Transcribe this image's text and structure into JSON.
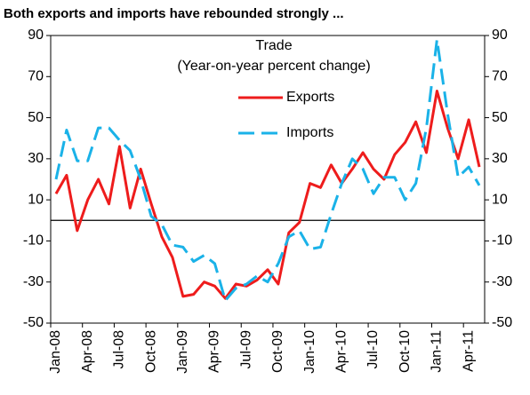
{
  "chart_data": {
    "type": "line",
    "title": "Both exports and imports have rebounded strongly ...",
    "annotations": [
      "Trade",
      "(Year-on-year percent change)"
    ],
    "categories": [
      "Jan-08",
      null,
      null,
      "Apr-08",
      null,
      null,
      "Jul-08",
      null,
      null,
      "Oct-08",
      null,
      null,
      "Jan-09",
      null,
      null,
      "Apr-09",
      null,
      null,
      "Jul-09",
      null,
      null,
      "Oct-09",
      null,
      null,
      "Jan-10",
      null,
      null,
      "Apr-10",
      null,
      null,
      "Jul-10",
      null,
      null,
      "Oct-10",
      null,
      null,
      "Jan-11",
      null,
      null,
      "Apr-11",
      null
    ],
    "series": [
      {
        "name": "Exports",
        "color": "#ee1c1c",
        "dash": false,
        "values": [
          13,
          22,
          -5,
          10,
          20,
          8,
          36,
          6,
          25,
          8,
          -8,
          -18,
          -37,
          -36,
          -30,
          -32,
          -38,
          -31,
          -32,
          -29,
          -24,
          -31,
          -6,
          -1,
          18,
          16,
          27,
          18,
          25,
          33,
          25,
          20,
          32,
          38,
          48,
          33,
          63,
          45,
          30,
          49,
          26
        ]
      },
      {
        "name": "Imports",
        "color": "#1ab2e8",
        "dash": true,
        "values": [
          20,
          44,
          29,
          29,
          45,
          45,
          39,
          34,
          20,
          2,
          -2,
          -12,
          -13,
          -20,
          -17,
          -21,
          -39,
          -33,
          -31,
          -27,
          -30,
          -21,
          -8,
          -5,
          -14,
          -13,
          3,
          18,
          30,
          25,
          13,
          21,
          21,
          10,
          18,
          45,
          88,
          52,
          21,
          26,
          17
        ]
      }
    ],
    "ylim": [
      -50,
      90
    ],
    "yticks": [
      -50,
      -30,
      -10,
      10,
      30,
      50,
      70,
      90
    ],
    "y2lim": [
      -50,
      90
    ],
    "y2ticks": [
      -50,
      -30,
      -10,
      10,
      30,
      50,
      70,
      90
    ],
    "grid": false
  }
}
